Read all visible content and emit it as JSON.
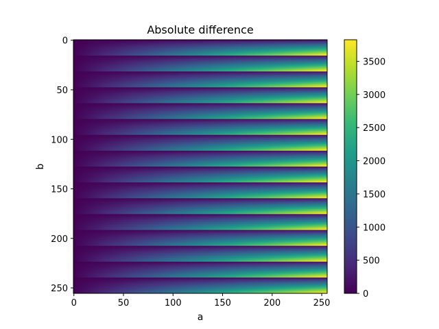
{
  "chart_data": {
    "type": "heatmap",
    "title": "Absolute difference",
    "xlabel": "a",
    "ylabel": "b",
    "xlim": [
      0,
      255
    ],
    "ylim": [
      255,
      0
    ],
    "x_ticks": [
      0,
      50,
      100,
      150,
      200,
      250
    ],
    "y_ticks": [
      0,
      50,
      100,
      150,
      200,
      250
    ],
    "colorbar": {
      "colormap": "viridis",
      "range": [
        0,
        3825
      ],
      "ticks": [
        0,
        500,
        1000,
        1500,
        2000,
        2500,
        3000,
        3500
      ]
    },
    "pattern": {
      "band_height_rows": 16,
      "band_count": 16,
      "description_values": "value rises with a, restarting every 16 rows of b; maximum about 3825 at the right edge near the bottom of each band"
    }
  },
  "colors": {
    "viridis_stops": [
      "#440154",
      "#482878",
      "#3e4989",
      "#31688e",
      "#26828e",
      "#1f9e89",
      "#35b779",
      "#6ece58",
      "#b5de2b",
      "#fde725"
    ]
  }
}
